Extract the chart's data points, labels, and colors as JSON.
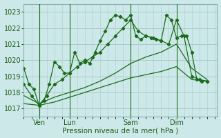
{
  "xlabel": "Pression niveau de la mer( hPa )",
  "ylim": [
    1016.5,
    1023.5
  ],
  "xlim": [
    0,
    76
  ],
  "bg_color": "#cce8e8",
  "grid_color": "#aacccc",
  "line_color": "#1a6b1a",
  "tick_label_color": "#1a5c1a",
  "xtick_positions": [
    6,
    18,
    42,
    60
  ],
  "xtick_labels": [
    "Ven",
    "Lun",
    "Sam",
    "Dim"
  ],
  "ytick_positions": [
    1017,
    1018,
    1019,
    1020,
    1021,
    1022,
    1023
  ],
  "vline_positions": [
    6,
    18,
    42,
    60
  ],
  "series1_x": [
    0,
    2,
    4,
    6,
    8,
    10,
    12,
    14,
    16,
    18,
    20,
    22,
    24,
    26,
    28,
    30,
    32,
    34,
    36,
    38,
    40,
    42,
    44,
    46,
    48,
    50,
    52,
    54,
    56,
    58,
    60,
    62,
    64,
    66,
    68,
    70,
    72
  ],
  "series1_y": [
    1019.5,
    1018.5,
    1018.2,
    1017.2,
    1017.5,
    1018.5,
    1019.9,
    1019.6,
    1019.2,
    1019.2,
    1020.5,
    1019.8,
    1020.0,
    1019.8,
    1020.5,
    1021.2,
    1021.8,
    1022.5,
    1022.8,
    1022.7,
    1022.5,
    1022.8,
    1021.5,
    1021.3,
    1021.5,
    1021.4,
    1021.3,
    1021.2,
    1022.8,
    1022.5,
    1021.4,
    1021.5,
    1021.5,
    1020.5,
    1018.8,
    1018.7,
    1018.7
  ],
  "series2_x": [
    0,
    3,
    6,
    9,
    12,
    15,
    18,
    21,
    24,
    27,
    30,
    33,
    36,
    39,
    42,
    45,
    48,
    51,
    54,
    57,
    60,
    63,
    66,
    69,
    72
  ],
  "series2_y": [
    1018.5,
    1017.8,
    1017.2,
    1017.8,
    1018.5,
    1018.8,
    1019.2,
    1019.6,
    1019.9,
    1020.2,
    1020.5,
    1021.0,
    1021.5,
    1022.0,
    1022.5,
    1021.8,
    1021.5,
    1021.4,
    1021.2,
    1021.0,
    1022.5,
    1021.5,
    1019.0,
    1018.8,
    1018.7
  ],
  "series3_x": [
    0,
    6,
    12,
    18,
    24,
    30,
    36,
    42,
    48,
    54,
    60,
    66,
    72
  ],
  "series3_y": [
    1017.8,
    1017.3,
    1017.7,
    1018.0,
    1018.3,
    1018.7,
    1019.2,
    1019.8,
    1020.2,
    1020.5,
    1021.0,
    1019.5,
    1018.8
  ],
  "series4_x": [
    0,
    6,
    12,
    18,
    24,
    30,
    36,
    42,
    48,
    54,
    60,
    66,
    72
  ],
  "series4_y": [
    1017.3,
    1017.2,
    1017.4,
    1017.7,
    1018.0,
    1018.3,
    1018.6,
    1018.9,
    1019.1,
    1019.3,
    1019.6,
    1018.8,
    1018.7
  ]
}
